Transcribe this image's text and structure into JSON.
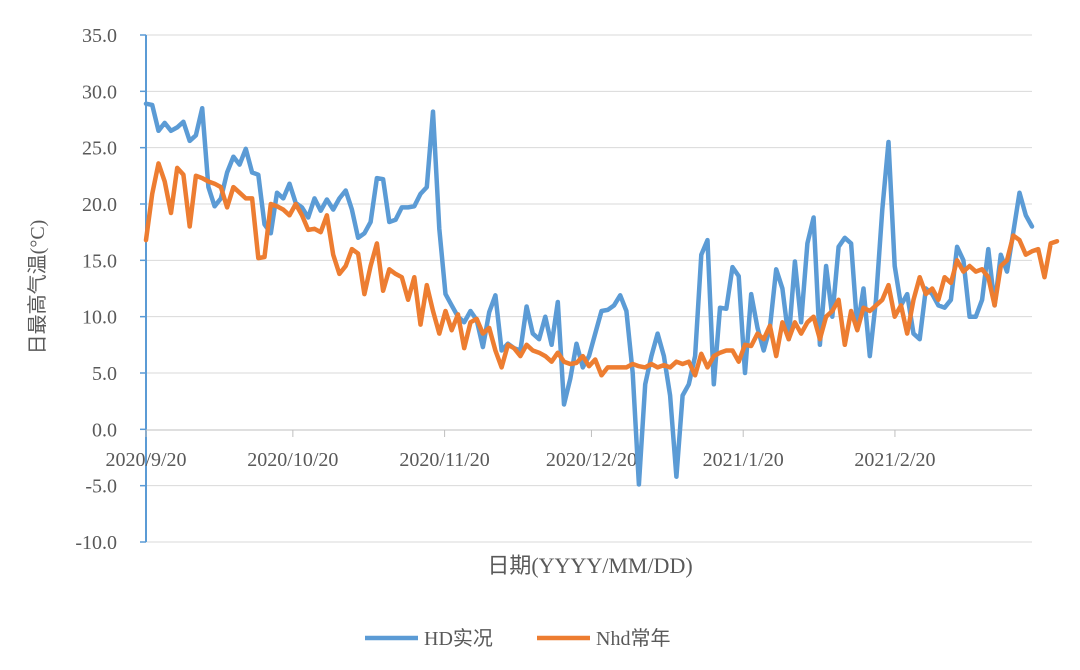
{
  "chart_data": {
    "type": "line",
    "title": "",
    "xlabel": "日期(YYYY/MM/DD)",
    "ylabel": "日最高气温(°C)",
    "ylim": [
      -10,
      35
    ],
    "yticks": [
      35,
      30,
      25,
      20,
      15,
      10,
      5,
      0,
      -5,
      -10
    ],
    "ytick_labels": [
      "35.0",
      "30.0",
      "25.0",
      "20.0",
      "15.0",
      "10.0",
      "5.0",
      "0.0",
      "-5.0",
      "-10.0"
    ],
    "xlim": [
      "2020/9/20",
      "2021/3/20"
    ],
    "xticks": [
      {
        "label": "2020/9/20",
        "day": 0
      },
      {
        "label": "2020/10/20",
        "day": 30
      },
      {
        "label": "2020/11/20",
        "day": 61
      },
      {
        "label": "2020/12/20",
        "day": 91
      },
      {
        "label": "2021/1/20",
        "day": 122
      },
      {
        "label": "2021/2/20",
        "day": 153
      }
    ],
    "grid": "horizontal",
    "legend": "bottom",
    "series": [
      {
        "name": "HD实况",
        "color": "#5B9BD5",
        "values": [
          28.9,
          28.8,
          26.5,
          27.2,
          26.5,
          26.8,
          27.3,
          25.6,
          26.1,
          28.5,
          21.5,
          19.8,
          20.5,
          22.8,
          24.2,
          23.5,
          24.9,
          22.8,
          22.6,
          18.2,
          17.4,
          21.0,
          20.5,
          21.8,
          20.1,
          19.7,
          18.8,
          20.5,
          19.4,
          20.4,
          19.5,
          20.5,
          21.2,
          19.5,
          17.0,
          17.4,
          18.4,
          22.3,
          22.2,
          18.4,
          18.6,
          19.7,
          19.7,
          19.8,
          20.9,
          21.5,
          28.2,
          17.8,
          12.0,
          11.0,
          10.0,
          9.5,
          10.5,
          9.7,
          7.3,
          10.4,
          11.9,
          7.0,
          7.6,
          7.2,
          7.0,
          10.9,
          8.5,
          8.0,
          10.0,
          7.5,
          11.3,
          2.2,
          4.5,
          7.6,
          5.5,
          6.5,
          8.5,
          10.5,
          10.6,
          11.0,
          11.9,
          10.5,
          5.0,
          -4.9,
          4.0,
          6.5,
          8.5,
          6.5,
          3.0,
          -4.2,
          3.0,
          4.0,
          6.5,
          15.5,
          16.8,
          4.0,
          10.8,
          10.7,
          14.4,
          13.6,
          5.0,
          12.0,
          9.0,
          7.0,
          9.0,
          14.2,
          12.5,
          8.0,
          14.9,
          9.5,
          16.5,
          18.8,
          7.5,
          14.5,
          10.0,
          16.2,
          17.0,
          16.5,
          9.0,
          12.5,
          6.5,
          11.5,
          19.5,
          25.5,
          14.5,
          11.0,
          12.0,
          8.5,
          8.0,
          12.5,
          12.0,
          11.0,
          10.8,
          11.5,
          16.2,
          15.0,
          10.0,
          10.0,
          11.5,
          16.0,
          11.0,
          15.5,
          14.0,
          17.5,
          21.0,
          19.0,
          18.0
        ]
      },
      {
        "name": "Nhd常年",
        "color": "#ED7D31",
        "values": [
          16.8,
          20.9,
          23.6,
          22.0,
          19.2,
          23.2,
          22.6,
          18.0,
          22.5,
          22.3,
          22.0,
          21.8,
          21.5,
          19.7,
          21.5,
          21.0,
          20.5,
          20.5,
          15.2,
          15.3,
          20.0,
          19.8,
          19.5,
          19.0,
          20.0,
          19.0,
          17.7,
          17.8,
          17.5,
          19.0,
          15.5,
          13.8,
          14.5,
          16.0,
          15.6,
          12.0,
          14.5,
          16.5,
          12.3,
          14.2,
          13.8,
          13.5,
          11.5,
          13.5,
          9.3,
          12.8,
          10.5,
          8.5,
          10.5,
          8.8,
          10.2,
          7.2,
          9.5,
          9.8,
          8.5,
          9.0,
          7.0,
          5.5,
          7.5,
          7.2,
          6.5,
          7.5,
          7.0,
          6.8,
          6.5,
          6.0,
          6.8,
          6.0,
          5.8,
          5.9,
          6.5,
          5.6,
          6.2,
          4.8,
          5.5,
          5.5,
          5.5,
          5.5,
          5.8,
          5.6,
          5.5,
          5.8,
          5.5,
          5.7,
          5.5,
          6.0,
          5.8,
          6.0,
          4.8,
          6.7,
          5.5,
          6.5,
          6.8,
          7.0,
          7.0,
          6.0,
          7.5,
          7.4,
          8.5,
          8.0,
          9.2,
          6.5,
          9.5,
          8.0,
          9.5,
          8.5,
          9.5,
          10.0,
          8.0,
          10.0,
          10.5,
          11.5,
          7.5,
          10.5,
          8.8,
          10.8,
          10.5,
          11.0,
          11.5,
          12.8,
          10.0,
          11.0,
          8.5,
          11.5,
          13.5,
          12.0,
          12.5,
          11.5,
          13.5,
          13.0,
          15.0,
          14.0,
          14.5,
          14.0,
          14.2,
          13.5,
          11.0,
          14.5,
          15.0,
          17.2,
          16.8,
          15.5,
          15.8,
          16.0,
          13.5,
          16.5,
          16.7
        ]
      }
    ]
  }
}
